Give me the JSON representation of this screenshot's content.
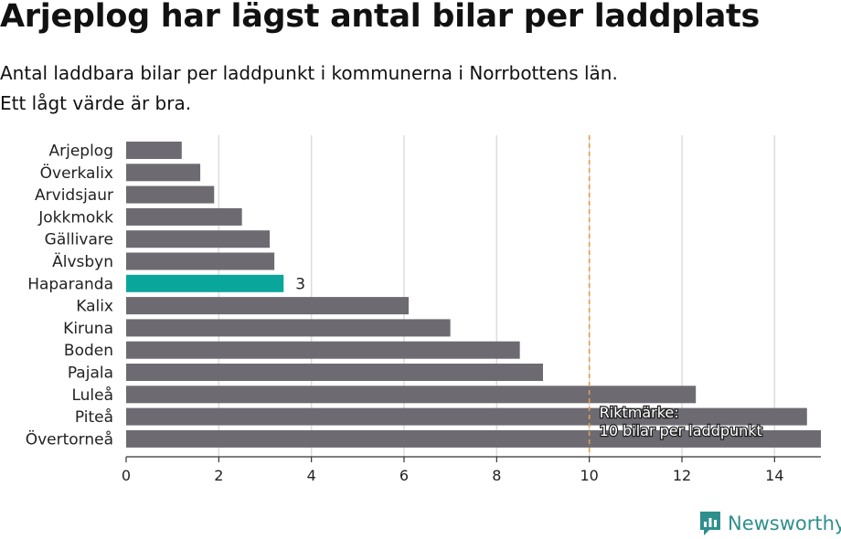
{
  "header": {
    "title": "Arjeplog har lägst antal bilar per laddplats",
    "subtitle_line1": "Antal laddbara bilar per laddpunkt i kommunerna i Norrbottens län.",
    "subtitle_line2": "Ett lågt värde är bra."
  },
  "brand": {
    "name": "Newsworthy",
    "icon": "newsworthy-logo-icon"
  },
  "colors": {
    "bar": "#6d6a72",
    "highlight": "#0aa69b",
    "reference_line": "#e0a048",
    "grid": "#dddddd"
  },
  "chart_data": {
    "type": "bar",
    "orientation": "horizontal",
    "categories": [
      "Arjeplog",
      "Överkalix",
      "Arvidsjaur",
      "Jokkmokk",
      "Gällivare",
      "Älvsbyn",
      "Haparanda",
      "Kalix",
      "Kiruna",
      "Boden",
      "Pajala",
      "Luleå",
      "Piteå",
      "Övertorneå"
    ],
    "values": [
      1.2,
      1.6,
      1.9,
      2.5,
      3.1,
      3.2,
      3.4,
      6.1,
      7.0,
      8.5,
      9.0,
      12.3,
      14.7,
      15.0
    ],
    "highlight": {
      "category": "Haparanda",
      "label": "3"
    },
    "xlim": [
      0,
      15
    ],
    "xticks": [
      "0",
      "2",
      "4",
      "6",
      "8",
      "10",
      "12",
      "14"
    ],
    "grid": true,
    "reference_line": {
      "value": 10,
      "label_line1": "Riktmärke:",
      "label_line2": "10 bilar per laddpunkt"
    }
  }
}
